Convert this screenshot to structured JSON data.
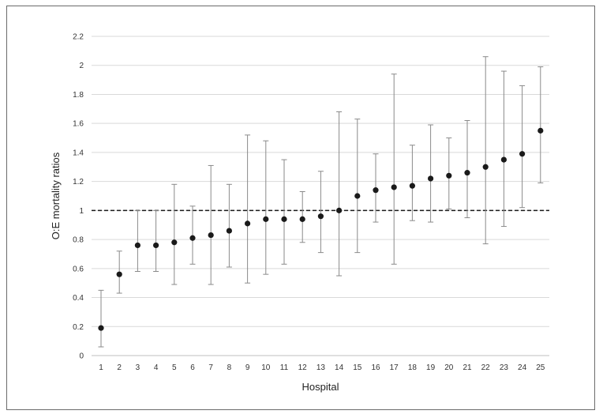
{
  "chart_data": {
    "type": "scatter",
    "xlabel": "Hospital",
    "ylabel": "O:E mortality ratios",
    "ylim": [
      0,
      2.2
    ],
    "y_ticks": [
      "0",
      "0.2",
      "0.4",
      "0.6",
      "0.8",
      "1",
      "1.2",
      "1.4",
      "1.6",
      "1.8",
      "2",
      "2.2"
    ],
    "x": [
      1,
      2,
      3,
      4,
      5,
      6,
      7,
      8,
      9,
      10,
      11,
      12,
      13,
      14,
      15,
      16,
      17,
      18,
      19,
      20,
      21,
      22,
      23,
      24,
      25
    ],
    "y": [
      0.19,
      0.56,
      0.76,
      0.76,
      0.78,
      0.81,
      0.83,
      0.86,
      0.91,
      0.94,
      0.94,
      0.94,
      0.96,
      1.0,
      1.1,
      1.14,
      1.16,
      1.17,
      1.22,
      1.24,
      1.26,
      1.3,
      1.35,
      1.39,
      1.55
    ],
    "ci_lower": [
      0.06,
      0.43,
      0.58,
      0.58,
      0.49,
      0.63,
      0.49,
      0.61,
      0.5,
      0.56,
      0.63,
      0.78,
      0.71,
      0.55,
      0.71,
      0.92,
      0.63,
      0.93,
      0.92,
      1.01,
      0.95,
      0.77,
      0.89,
      1.02,
      1.19
    ],
    "ci_upper": [
      0.45,
      0.72,
      1.0,
      1.0,
      1.18,
      1.03,
      1.31,
      1.18,
      1.52,
      1.48,
      1.35,
      1.13,
      1.27,
      1.68,
      1.63,
      1.39,
      1.94,
      1.45,
      1.59,
      1.5,
      1.62,
      2.06,
      1.96,
      1.86,
      1.99
    ],
    "reference_line": 1,
    "grid": "horizontal",
    "colors": {
      "point": "#1a1a1a",
      "errorbar": "#8a8a8a",
      "grid": "#d9d9d9",
      "reference": "#1a1a1a"
    }
  }
}
